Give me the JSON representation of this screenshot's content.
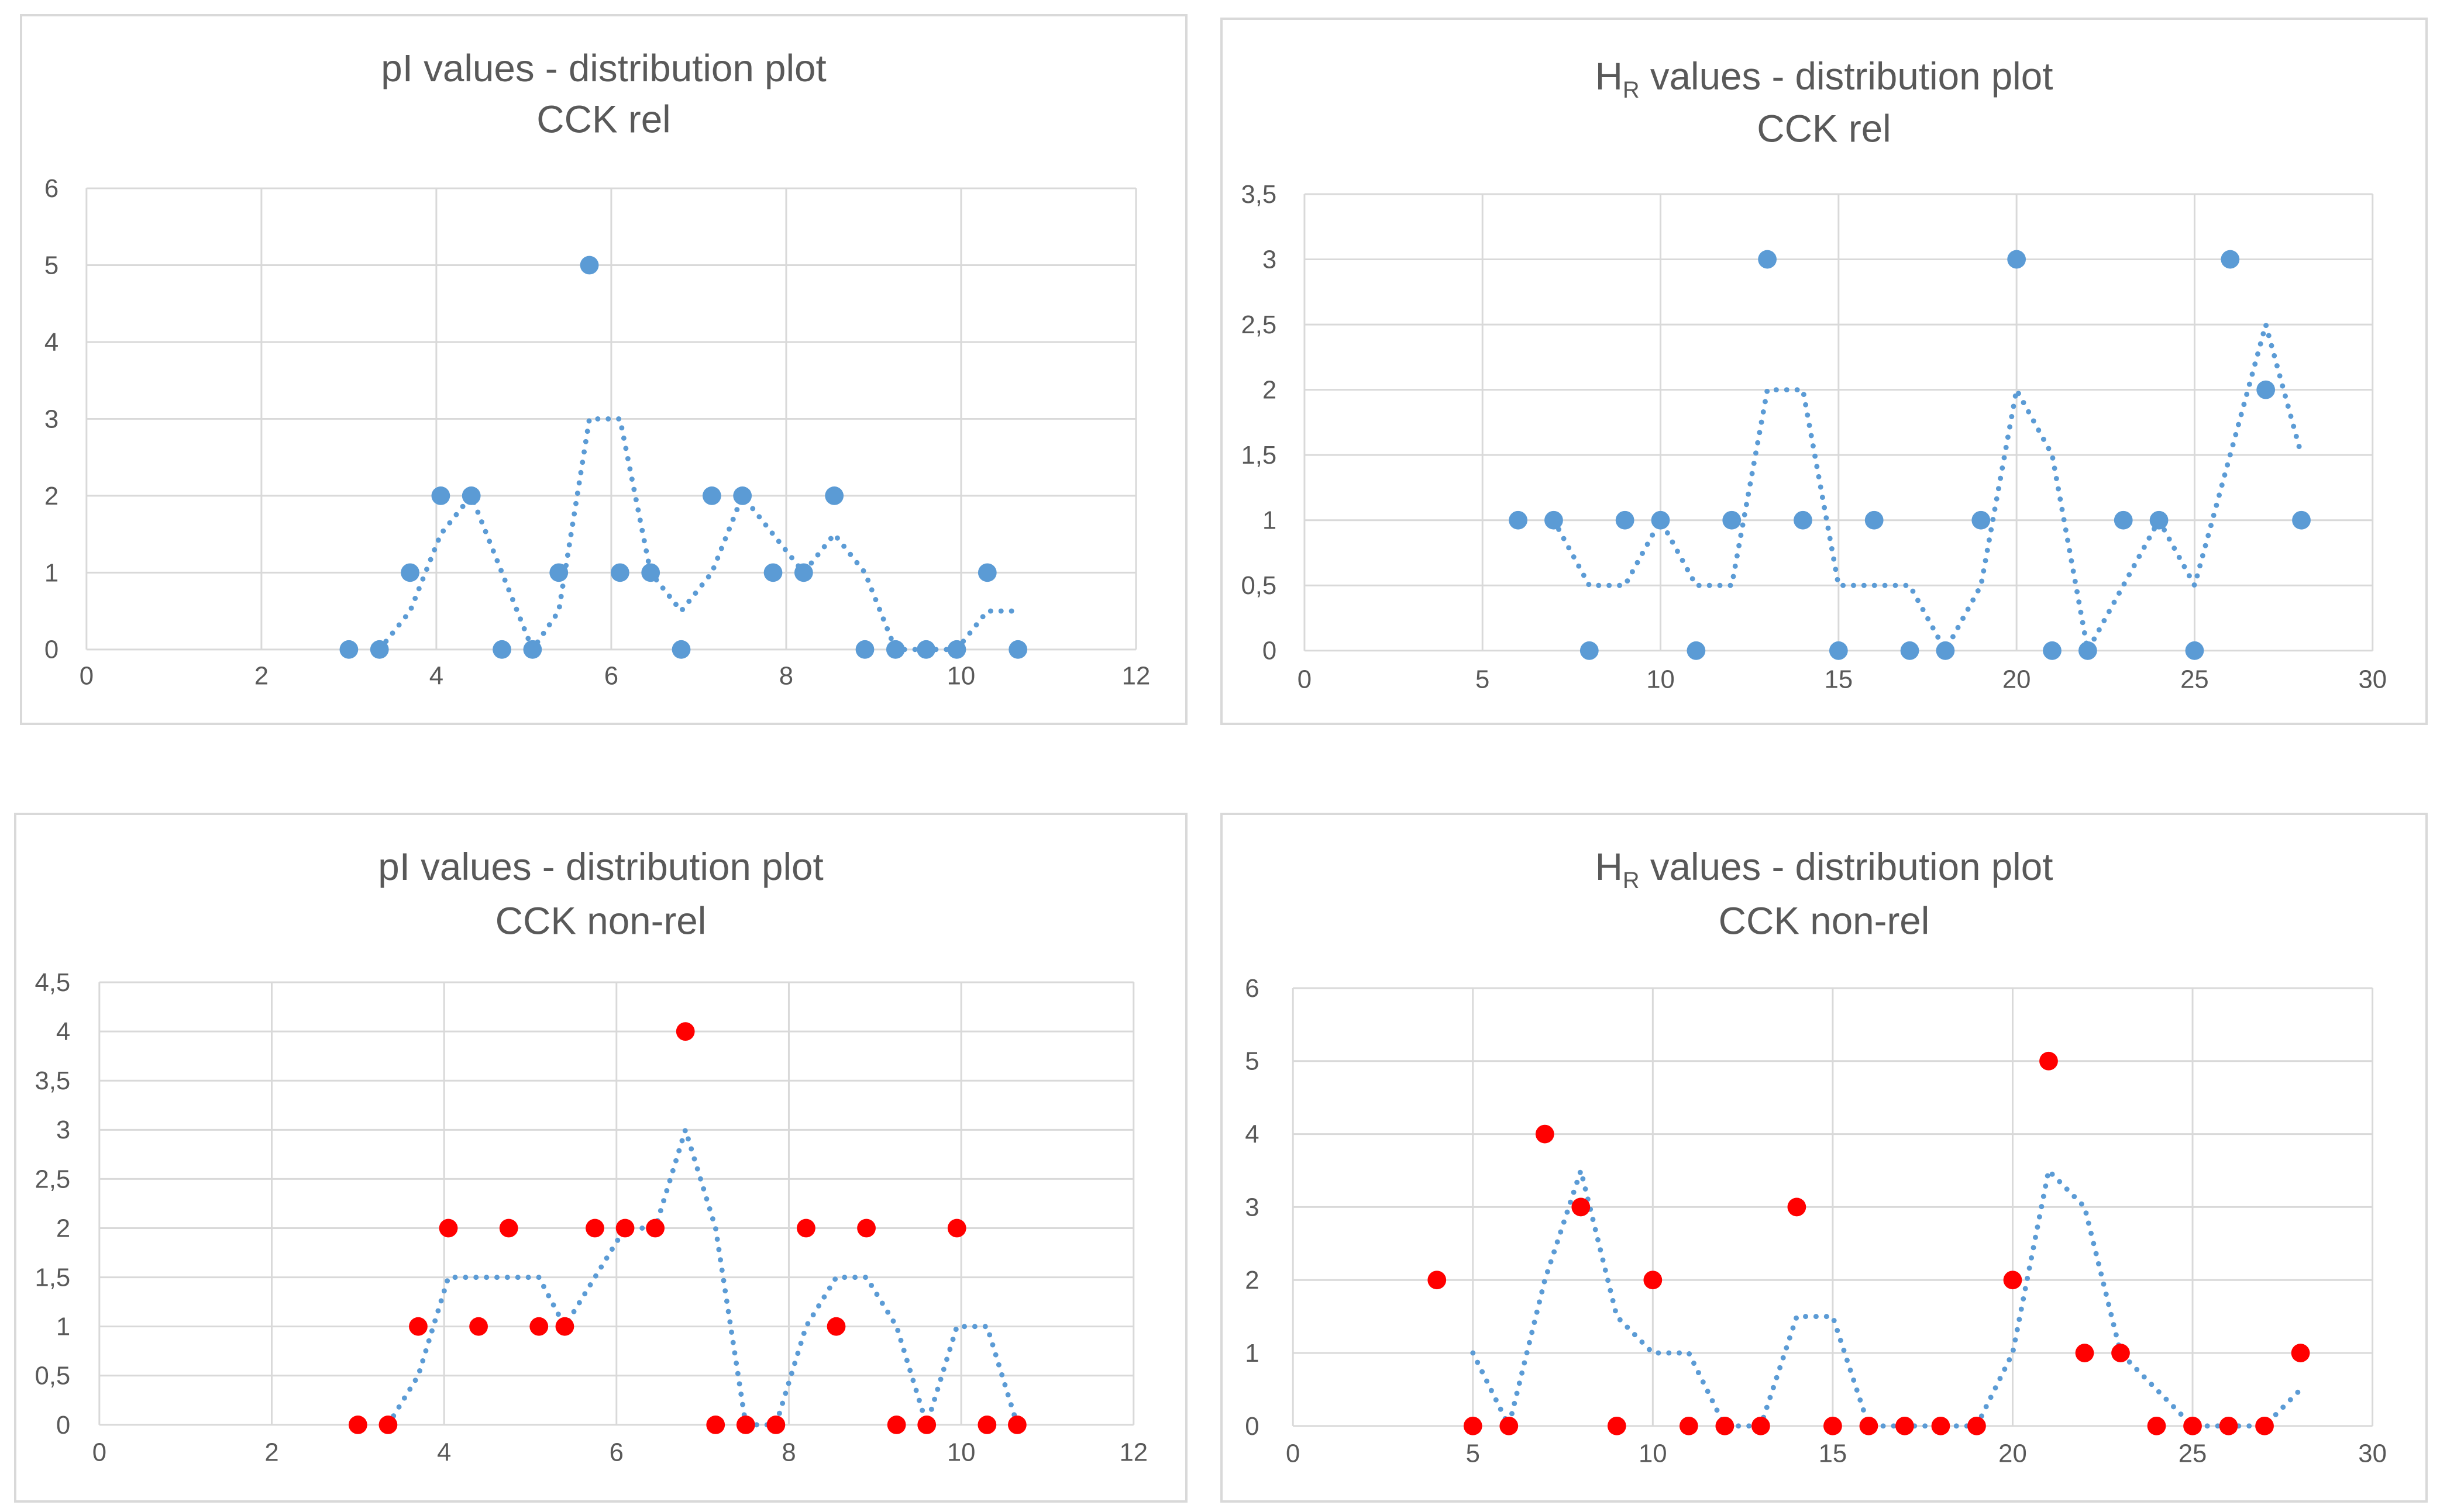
{
  "chart_data": [
    {
      "type": "scatter",
      "title": "pI values - distribution plot",
      "subtitle": "CCK rel",
      "marker_color": "#5b9bd5",
      "trend_color": "#5b9bd5",
      "xlim": [
        0,
        12
      ],
      "xticks": [
        0,
        2,
        4,
        6,
        8,
        10,
        12
      ],
      "ylim": [
        0,
        6
      ],
      "yticks": [
        0,
        1,
        2,
        3,
        4,
        5,
        6
      ],
      "ytick_labels": [
        "0",
        "1",
        "2",
        "3",
        "4",
        "5",
        "6"
      ],
      "x": [
        3.0,
        3.35,
        3.7,
        4.05,
        4.4,
        4.75,
        5.1,
        5.4,
        5.75,
        6.1,
        6.45,
        6.8,
        7.15,
        7.5,
        7.85,
        8.2,
        8.55,
        8.9,
        9.25,
        9.6,
        9.95,
        10.3,
        10.65
      ],
      "y": [
        0,
        0,
        1,
        2,
        2,
        0,
        0,
        1,
        5,
        1,
        1,
        0,
        2,
        2,
        1,
        1,
        2,
        0,
        0,
        0,
        0,
        1,
        0
      ],
      "trendline": {
        "type": "moving-average",
        "period": 2
      }
    },
    {
      "type": "scatter",
      "title": "H",
      "title_sub": "R",
      "title_rest": " values - distribution plot",
      "subtitle": "CCK rel",
      "marker_color": "#5b9bd5",
      "trend_color": "#5b9bd5",
      "xlim": [
        0,
        30
      ],
      "xticks": [
        0,
        5,
        10,
        15,
        20,
        25,
        30
      ],
      "ylim": [
        0,
        3.5
      ],
      "yticks": [
        0,
        0.5,
        1,
        1.5,
        2,
        2.5,
        3,
        3.5
      ],
      "ytick_labels": [
        "0",
        "0,5",
        "1",
        "1,5",
        "2",
        "2,5",
        "3",
        "3,5"
      ],
      "x": [
        6,
        7,
        8,
        9,
        10,
        11,
        12,
        13,
        14,
        15,
        16,
        17,
        18,
        19,
        20,
        21,
        22,
        23,
        24,
        25,
        26,
        27,
        28
      ],
      "y": [
        1,
        1,
        0,
        1,
        1,
        0,
        1,
        3,
        1,
        0,
        1,
        0,
        0,
        1,
        3,
        0,
        0,
        1,
        1,
        0,
        3,
        2,
        1
      ],
      "trendline": {
        "type": "moving-average",
        "period": 2
      }
    },
    {
      "type": "scatter",
      "title": "pI values - distribution plot",
      "subtitle": "CCK non-rel",
      "marker_color": "#ff0000",
      "trend_color": "#5b9bd5",
      "xlim": [
        0,
        12
      ],
      "xticks": [
        0,
        2,
        4,
        6,
        8,
        10,
        12
      ],
      "ylim": [
        0,
        4.5
      ],
      "yticks": [
        0,
        0.5,
        1,
        1.5,
        2,
        2.5,
        3,
        3.5,
        4,
        4.5
      ],
      "ytick_labels": [
        "0",
        "0,5",
        "1",
        "1,5",
        "2",
        "2,5",
        "3",
        "3,5",
        "4",
        "4,5"
      ],
      "x": [
        3.0,
        3.35,
        3.7,
        4.05,
        4.4,
        4.75,
        5.1,
        5.4,
        5.75,
        6.1,
        6.45,
        6.8,
        7.15,
        7.5,
        7.85,
        8.2,
        8.55,
        8.9,
        9.25,
        9.6,
        9.95,
        10.3,
        10.65
      ],
      "y": [
        0,
        0,
        1,
        2,
        1,
        2,
        1,
        1,
        2,
        2,
        2,
        4,
        0,
        0,
        0,
        2,
        1,
        2,
        0,
        0,
        2,
        0,
        0
      ],
      "trendline": {
        "type": "moving-average",
        "period": 2
      }
    },
    {
      "type": "scatter",
      "title": "H",
      "title_sub": "R",
      "title_rest": " values - distribution plot",
      "subtitle": "CCK non-rel",
      "marker_color": "#ff0000",
      "trend_color": "#5b9bd5",
      "xlim": [
        0,
        30
      ],
      "xticks": [
        0,
        5,
        10,
        15,
        20,
        25,
        30
      ],
      "ylim": [
        0,
        6
      ],
      "yticks": [
        0,
        1,
        2,
        3,
        4,
        5,
        6
      ],
      "ytick_labels": [
        "0",
        "1",
        "2",
        "3",
        "4",
        "5",
        "6"
      ],
      "x": [
        4,
        5,
        6,
        7,
        8,
        9,
        10,
        11,
        12,
        13,
        14,
        15,
        16,
        17,
        18,
        19,
        20,
        21,
        22,
        23,
        24,
        25,
        26,
        27,
        28
      ],
      "y": [
        2,
        0,
        0,
        4,
        3,
        0,
        2,
        0,
        0,
        0,
        3,
        0,
        0,
        0,
        0,
        0,
        2,
        5,
        1,
        1,
        0,
        0,
        0,
        0,
        1
      ],
      "trendline": {
        "type": "moving-average",
        "period": 2
      }
    }
  ]
}
